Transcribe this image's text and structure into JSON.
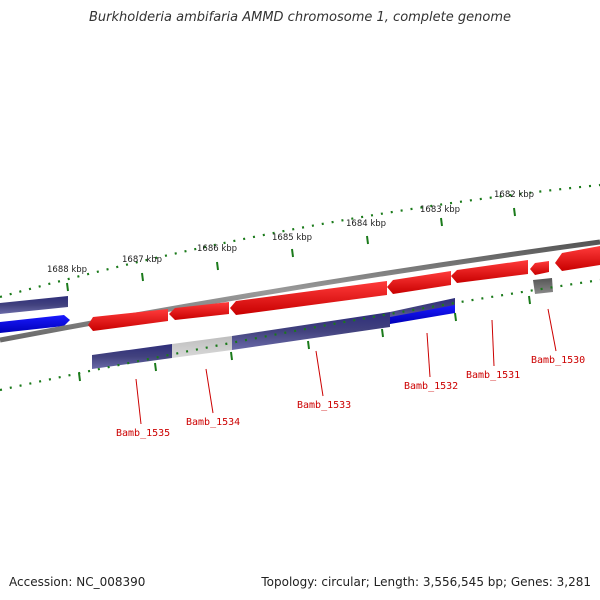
{
  "title": "Burkholderia ambifaria AMMD chromosome 1, complete genome",
  "accession": "Accession: NC_008390",
  "topology": "Topology: circular; Length: 3,556,545 bp; Genes: 3,281",
  "scale_ticks": [
    "1682 kbp",
    "1683 kbp",
    "1684 kbp",
    "1685 kbp",
    "1686 kbp",
    "1687 kbp",
    "1688 kbp"
  ],
  "genes": [
    "Bamb_1530",
    "Bamb_1531",
    "Bamb_1532",
    "Bamb_1533",
    "Bamb_1534",
    "Bamb_1535"
  ],
  "colors": {
    "forward_strand": "#ff0000",
    "reverse_strand": "#483d8b",
    "highlight_blue": "#0000ff",
    "grey_feature": "#c0c0c0",
    "dark_grey_feature": "#666666",
    "backbone": "#808080",
    "ticks": "#006400",
    "label": "#cc0000"
  }
}
